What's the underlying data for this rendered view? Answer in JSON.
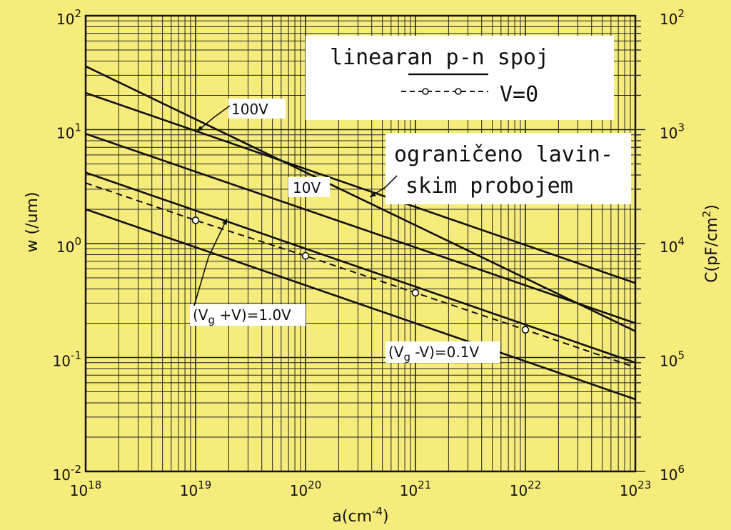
{
  "chart_data": {
    "type": "line",
    "x_scale": "log",
    "y_scale": "log",
    "xlim": [
      1e+18,
      1e+23
    ],
    "ylim": [
      0.01,
      100
    ],
    "grid": true,
    "x_ticks": [
      {
        "base": "10",
        "exp": "18"
      },
      {
        "base": "10",
        "exp": "19"
      },
      {
        "base": "10",
        "exp": "20"
      },
      {
        "base": "10",
        "exp": "21"
      },
      {
        "base": "10",
        "exp": "22"
      },
      {
        "base": "10",
        "exp": "23"
      }
    ],
    "y_ticks": [
      {
        "base": "10",
        "exp": "2"
      },
      {
        "base": "10",
        "exp": "1"
      },
      {
        "base": "10",
        "exp": "0"
      },
      {
        "base": "10",
        "exp": "-1"
      },
      {
        "base": "10",
        "exp": "-2"
      }
    ],
    "y2_ticks": [
      {
        "base": "10",
        "exp": "2"
      },
      {
        "base": "10",
        "exp": "3"
      },
      {
        "base": "10",
        "exp": "4"
      },
      {
        "base": "10",
        "exp": "5"
      },
      {
        "base": "10",
        "exp": "6"
      }
    ],
    "xlabel": {
      "main": "a(cm",
      "sup": "-4",
      "end": ")"
    },
    "ylabel": "w (/um)",
    "y2label": {
      "main": "C(pF/cm",
      "sup": "2",
      "end": ")"
    },
    "legend": {
      "line1": "linearan p-n spoj",
      "solid_label": "",
      "dashed_label": "V=0"
    },
    "note": {
      "line1": "ograničeno lavin-",
      "line2": "skim probojem"
    },
    "series": [
      {
        "style": "solid",
        "x": [
          1e+18,
          1e+23
        ],
        "y": [
          36,
          0.17
        ]
      },
      {
        "style": "solid",
        "x": [
          1e+18,
          1e+23
        ],
        "y": [
          21,
          0.45
        ]
      },
      {
        "style": "solid",
        "x": [
          1e+18,
          1e+23
        ],
        "y": [
          9.2,
          0.2
        ]
      },
      {
        "style": "solid",
        "x": [
          1e+18,
          1e+23
        ],
        "y": [
          4.2,
          0.09
        ]
      },
      {
        "style": "solid",
        "x": [
          1e+18,
          1e+23
        ],
        "y": [
          2.0,
          0.043
        ]
      },
      {
        "style": "dashed",
        "x": [
          1e+18,
          1e+19,
          1e+20,
          1e+21,
          1e+22,
          1e+23
        ],
        "y": [
          3.4,
          1.6,
          0.78,
          0.37,
          0.175,
          0.082
        ],
        "markers": [
          1e+19,
          1e+20,
          1e+21,
          1e+22
        ]
      }
    ],
    "annotations": [
      {
        "text": "100V",
        "at": [
          1e+19,
          9.8
        ]
      },
      {
        "text": "10V",
        "at": [
          1e+20,
          2.2
        ]
      },
      {
        "main": "(V",
        "sub": "g",
        "end": " +V)=1.0V",
        "at": [
          2e+19,
          0.95
        ]
      },
      {
        "main": "(V",
        "sub": "g",
        "end": " -V)=0.1V",
        "at": [
          4e+21,
          0.08
        ]
      }
    ]
  }
}
